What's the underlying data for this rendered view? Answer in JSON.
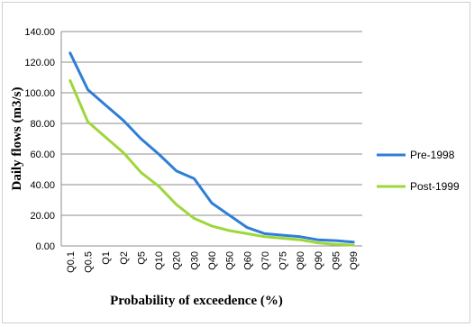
{
  "chart_data": {
    "type": "line",
    "title": "",
    "xlabel": "Probability of exceedence (%)",
    "ylabel": "Daily flows (m3/s)",
    "categories": [
      "Q0.1",
      "Q0.5",
      "Q1",
      "Q2",
      "Q5",
      "Q10",
      "Q20",
      "Q30",
      "Q40",
      "Q50",
      "Q60",
      "Q70",
      "Q75",
      "Q80",
      "Q90",
      "Q95",
      "Q99"
    ],
    "y_ticks": [
      "0.00",
      "20.00",
      "40.00",
      "60.00",
      "80.00",
      "100.00",
      "120.00",
      "140.00"
    ],
    "ylim": [
      0,
      140
    ],
    "grid": true,
    "legend_position": "right",
    "series": [
      {
        "name": "Pre-1998",
        "color": "#2f7ed8",
        "values": [
          126,
          102,
          92,
          82,
          70,
          60,
          49,
          44,
          28,
          20,
          12,
          8,
          7,
          6,
          4,
          3.5,
          2.5
        ]
      },
      {
        "name": "Post-1999",
        "color": "#9ed73a",
        "values": [
          108,
          81,
          71,
          61,
          48,
          39,
          27,
          18,
          13,
          10,
          8,
          6,
          5,
          4,
          2,
          1,
          0.5
        ]
      }
    ]
  }
}
